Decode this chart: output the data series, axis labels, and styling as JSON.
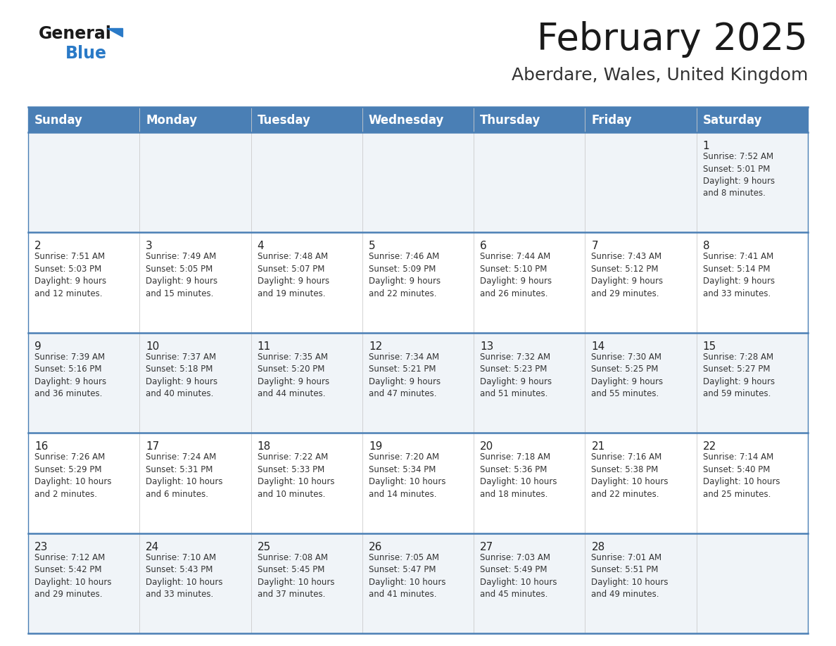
{
  "title": "February 2025",
  "subtitle": "Aberdare, Wales, United Kingdom",
  "header_bg": "#4a7fb5",
  "header_text": "#ffffff",
  "row_bg_odd": "#f0f4f8",
  "row_bg_even": "#ffffff",
  "separator_color": "#4a7fb5",
  "day_number_color": "#222222",
  "cell_text_color": "#333333",
  "days_of_week": [
    "Sunday",
    "Monday",
    "Tuesday",
    "Wednesday",
    "Thursday",
    "Friday",
    "Saturday"
  ],
  "weeks": [
    [
      {
        "day": null,
        "sunrise": null,
        "sunset": null,
        "daylight": null
      },
      {
        "day": null,
        "sunrise": null,
        "sunset": null,
        "daylight": null
      },
      {
        "day": null,
        "sunrise": null,
        "sunset": null,
        "daylight": null
      },
      {
        "day": null,
        "sunrise": null,
        "sunset": null,
        "daylight": null
      },
      {
        "day": null,
        "sunrise": null,
        "sunset": null,
        "daylight": null
      },
      {
        "day": null,
        "sunrise": null,
        "sunset": null,
        "daylight": null
      },
      {
        "day": 1,
        "sunrise": "7:52 AM",
        "sunset": "5:01 PM",
        "daylight": "9 hours and 8 minutes."
      }
    ],
    [
      {
        "day": 2,
        "sunrise": "7:51 AM",
        "sunset": "5:03 PM",
        "daylight": "9 hours and 12 minutes."
      },
      {
        "day": 3,
        "sunrise": "7:49 AM",
        "sunset": "5:05 PM",
        "daylight": "9 hours and 15 minutes."
      },
      {
        "day": 4,
        "sunrise": "7:48 AM",
        "sunset": "5:07 PM",
        "daylight": "9 hours and 19 minutes."
      },
      {
        "day": 5,
        "sunrise": "7:46 AM",
        "sunset": "5:09 PM",
        "daylight": "9 hours and 22 minutes."
      },
      {
        "day": 6,
        "sunrise": "7:44 AM",
        "sunset": "5:10 PM",
        "daylight": "9 hours and 26 minutes."
      },
      {
        "day": 7,
        "sunrise": "7:43 AM",
        "sunset": "5:12 PM",
        "daylight": "9 hours and 29 minutes."
      },
      {
        "day": 8,
        "sunrise": "7:41 AM",
        "sunset": "5:14 PM",
        "daylight": "9 hours and 33 minutes."
      }
    ],
    [
      {
        "day": 9,
        "sunrise": "7:39 AM",
        "sunset": "5:16 PM",
        "daylight": "9 hours and 36 minutes."
      },
      {
        "day": 10,
        "sunrise": "7:37 AM",
        "sunset": "5:18 PM",
        "daylight": "9 hours and 40 minutes."
      },
      {
        "day": 11,
        "sunrise": "7:35 AM",
        "sunset": "5:20 PM",
        "daylight": "9 hours and 44 minutes."
      },
      {
        "day": 12,
        "sunrise": "7:34 AM",
        "sunset": "5:21 PM",
        "daylight": "9 hours and 47 minutes."
      },
      {
        "day": 13,
        "sunrise": "7:32 AM",
        "sunset": "5:23 PM",
        "daylight": "9 hours and 51 minutes."
      },
      {
        "day": 14,
        "sunrise": "7:30 AM",
        "sunset": "5:25 PM",
        "daylight": "9 hours and 55 minutes."
      },
      {
        "day": 15,
        "sunrise": "7:28 AM",
        "sunset": "5:27 PM",
        "daylight": "9 hours and 59 minutes."
      }
    ],
    [
      {
        "day": 16,
        "sunrise": "7:26 AM",
        "sunset": "5:29 PM",
        "daylight": "10 hours and 2 minutes."
      },
      {
        "day": 17,
        "sunrise": "7:24 AM",
        "sunset": "5:31 PM",
        "daylight": "10 hours and 6 minutes."
      },
      {
        "day": 18,
        "sunrise": "7:22 AM",
        "sunset": "5:33 PM",
        "daylight": "10 hours and 10 minutes."
      },
      {
        "day": 19,
        "sunrise": "7:20 AM",
        "sunset": "5:34 PM",
        "daylight": "10 hours and 14 minutes."
      },
      {
        "day": 20,
        "sunrise": "7:18 AM",
        "sunset": "5:36 PM",
        "daylight": "10 hours and 18 minutes."
      },
      {
        "day": 21,
        "sunrise": "7:16 AM",
        "sunset": "5:38 PM",
        "daylight": "10 hours and 22 minutes."
      },
      {
        "day": 22,
        "sunrise": "7:14 AM",
        "sunset": "5:40 PM",
        "daylight": "10 hours and 25 minutes."
      }
    ],
    [
      {
        "day": 23,
        "sunrise": "7:12 AM",
        "sunset": "5:42 PM",
        "daylight": "10 hours and 29 minutes."
      },
      {
        "day": 24,
        "sunrise": "7:10 AM",
        "sunset": "5:43 PM",
        "daylight": "10 hours and 33 minutes."
      },
      {
        "day": 25,
        "sunrise": "7:08 AM",
        "sunset": "5:45 PM",
        "daylight": "10 hours and 37 minutes."
      },
      {
        "day": 26,
        "sunrise": "7:05 AM",
        "sunset": "5:47 PM",
        "daylight": "10 hours and 41 minutes."
      },
      {
        "day": 27,
        "sunrise": "7:03 AM",
        "sunset": "5:49 PM",
        "daylight": "10 hours and 45 minutes."
      },
      {
        "day": 28,
        "sunrise": "7:01 AM",
        "sunset": "5:51 PM",
        "daylight": "10 hours and 49 minutes."
      },
      {
        "day": null,
        "sunrise": null,
        "sunset": null,
        "daylight": null
      }
    ]
  ],
  "logo_color_general": "#1a1a1a",
  "logo_color_blue": "#2a7ac7",
  "logo_triangle_color": "#2a7ac7",
  "fig_width": 11.88,
  "fig_height": 9.18,
  "dpi": 100
}
